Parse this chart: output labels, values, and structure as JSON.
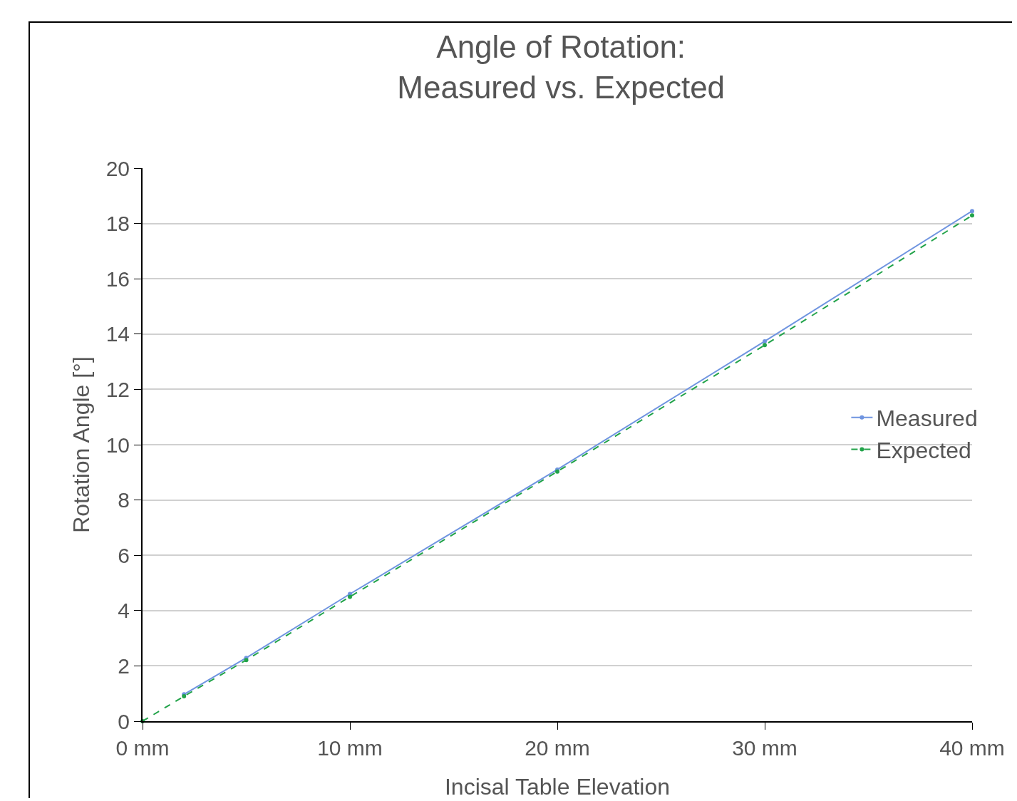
{
  "chart_data": {
    "type": "line",
    "title": "Angle of Rotation:\nMeasured vs. Expected",
    "xlabel": "Incisal Table Elevation",
    "ylabel": "Rotation Angle [°]",
    "xlim": [
      0,
      40
    ],
    "xticks": [
      {
        "value": 0,
        "label": "0 mm"
      },
      {
        "value": 10,
        "label": "10 mm"
      },
      {
        "value": 20,
        "label": "20 mm"
      },
      {
        "value": 30,
        "label": "30 mm"
      },
      {
        "value": 40,
        "label": "40 mm"
      }
    ],
    "ylim": [
      0,
      20
    ],
    "yticks": [
      0,
      2,
      4,
      6,
      8,
      10,
      12,
      14,
      16,
      18,
      20
    ],
    "grid": "y",
    "legend": "right",
    "marker": "circle",
    "series": [
      {
        "name": "Measured",
        "color": "#6f94e0",
        "line_style": "solid",
        "x": [
          2,
          5,
          10,
          20,
          30,
          40
        ],
        "values": [
          0.97,
          2.29,
          4.6,
          9.1,
          13.74,
          18.45
        ]
      },
      {
        "name": "Expected",
        "color": "#22a34a",
        "line_style": "dashed",
        "x": [
          0,
          2,
          5,
          10,
          20,
          30,
          40
        ],
        "values": [
          0,
          0.9,
          2.21,
          4.5,
          9.03,
          13.6,
          18.29
        ]
      }
    ]
  }
}
